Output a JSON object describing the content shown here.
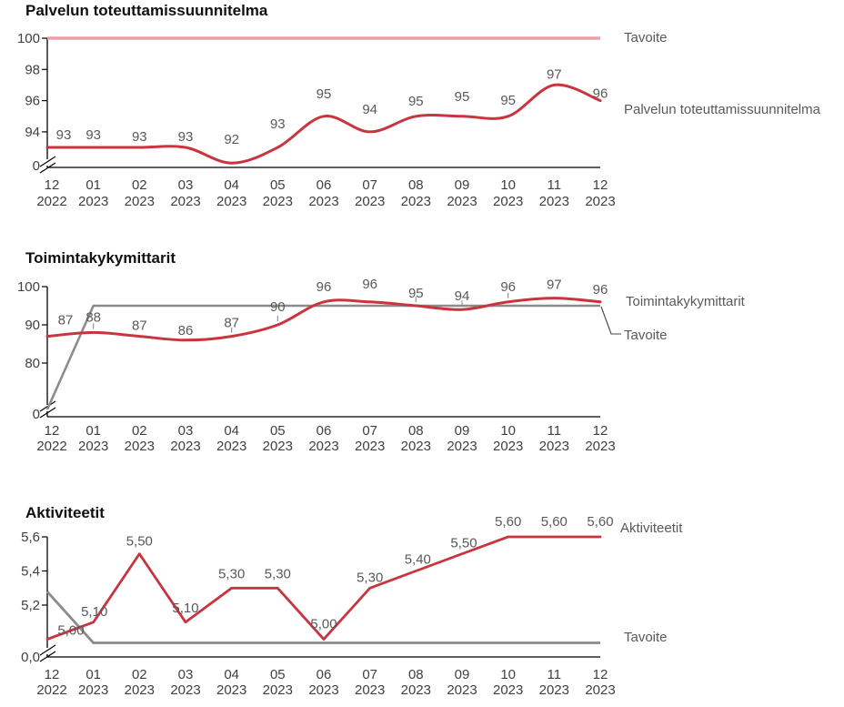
{
  "page": {
    "background": "#ffffff"
  },
  "colors": {
    "series_red": "#c9353f",
    "target_pink": "#eaa2a8",
    "target_gray": "#8c8c8c",
    "axis_line": "#000000",
    "tick_label": "#404040",
    "data_label": "#595959"
  },
  "chart_data": [
    {
      "type": "line",
      "title": "Palvelun toteuttamissuunnitelma",
      "x_tick_months": [
        "12",
        "01",
        "02",
        "03",
        "04",
        "05",
        "06",
        "07",
        "08",
        "09",
        "10",
        "11",
        "12"
      ],
      "x_tick_years": [
        "2022",
        "2023",
        "2023",
        "2023",
        "2023",
        "2023",
        "2023",
        "2023",
        "2023",
        "2023",
        "2023",
        "2023",
        "2023"
      ],
      "y_tick_labels": [
        "100",
        "98",
        "96",
        "94"
      ],
      "y_tick_values": [
        100,
        98,
        96,
        94
      ],
      "y_break_label": "0",
      "axis_break": true,
      "grid": false,
      "legend_position": "right",
      "legend": [
        "Tavoite",
        "Palvelun toteuttamissuunnitelma"
      ],
      "series": [
        {
          "name": "Tavoite",
          "role": "target",
          "color": "#eaa2a8",
          "values": [
            100,
            100,
            100,
            100,
            100,
            100,
            100,
            100,
            100,
            100,
            100,
            100,
            100
          ]
        },
        {
          "name": "Palvelun toteuttamissuunnitelma",
          "role": "actual",
          "color": "#c9353f",
          "values": [
            93,
            93,
            93,
            93,
            92,
            93,
            95,
            94,
            95,
            95,
            95,
            97,
            96
          ],
          "data_labels": [
            "93",
            "93",
            "93",
            "93",
            "92",
            "93",
            "95",
            "94",
            "95",
            "95",
            "95",
            "97",
            "96"
          ]
        }
      ]
    },
    {
      "type": "line",
      "title": "Toimintakykymittarit",
      "x_tick_months": [
        "12",
        "01",
        "02",
        "03",
        "04",
        "05",
        "06",
        "07",
        "08",
        "09",
        "10",
        "11",
        "12"
      ],
      "x_tick_years": [
        "2022",
        "2023",
        "2023",
        "2023",
        "2023",
        "2023",
        "2023",
        "2023",
        "2023",
        "2023",
        "2023",
        "2023",
        "2023"
      ],
      "y_tick_labels": [
        "100",
        "90",
        "80"
      ],
      "y_tick_values": [
        100,
        90,
        80
      ],
      "y_break_label": "0",
      "axis_break": true,
      "grid": false,
      "legend_position": "right",
      "legend": [
        "Toimintakykymittarit",
        "Tavoite"
      ],
      "series": [
        {
          "name": "Tavoite",
          "role": "target",
          "color": "#8c8c8c",
          "values": [
            0,
            95,
            95,
            95,
            95,
            95,
            95,
            95,
            95,
            95,
            95,
            95,
            95
          ]
        },
        {
          "name": "Toimintakykymittarit",
          "role": "actual",
          "color": "#c9353f",
          "values": [
            87,
            88,
            87,
            86,
            87,
            90,
            96,
            96,
            95,
            94,
            96,
            97,
            96
          ],
          "data_labels": [
            "87",
            "88",
            "87",
            "86",
            "87",
            "90",
            "96",
            "96",
            "95",
            "94",
            "96",
            "97",
            "96"
          ]
        }
      ]
    },
    {
      "type": "line",
      "title": "Aktiviteetit",
      "x_tick_months": [
        "12",
        "01",
        "02",
        "03",
        "04",
        "05",
        "06",
        "07",
        "08",
        "09",
        "10",
        "11",
        "12"
      ],
      "x_tick_years": [
        "2022",
        "2023",
        "2023",
        "2023",
        "2023",
        "2023",
        "2023",
        "2023",
        "2023",
        "2023",
        "2023",
        "2023",
        "2023"
      ],
      "y_tick_labels": [
        "5,6",
        "5,4",
        "5,2"
      ],
      "y_tick_values": [
        5.6,
        5.4,
        5.2
      ],
      "y_break_label": "0,0",
      "axis_break": true,
      "grid": false,
      "legend_position": "right",
      "legend": [
        "Aktiviteetit",
        "Tavoite"
      ],
      "series": [
        {
          "name": "Tavoite",
          "role": "target",
          "color": "#8c8c8c",
          "values": [
            5.3,
            5.0,
            5.0,
            5.0,
            5.0,
            5.0,
            5.0,
            5.0,
            5.0,
            5.0,
            5.0,
            5.0,
            5.0
          ]
        },
        {
          "name": "Aktiviteetit",
          "role": "actual",
          "color": "#c9353f",
          "values": [
            5.0,
            5.1,
            5.5,
            5.1,
            5.3,
            5.3,
            5.0,
            5.3,
            5.4,
            5.5,
            5.6,
            5.6,
            5.6
          ],
          "data_labels": [
            "5,00",
            "5,10",
            "5,50",
            "5,10",
            "5,30",
            "5,30",
            "5,00",
            "5,30",
            "5,40",
            "5,50",
            "5,60",
            "5,60",
            "5,60"
          ]
        }
      ]
    }
  ]
}
